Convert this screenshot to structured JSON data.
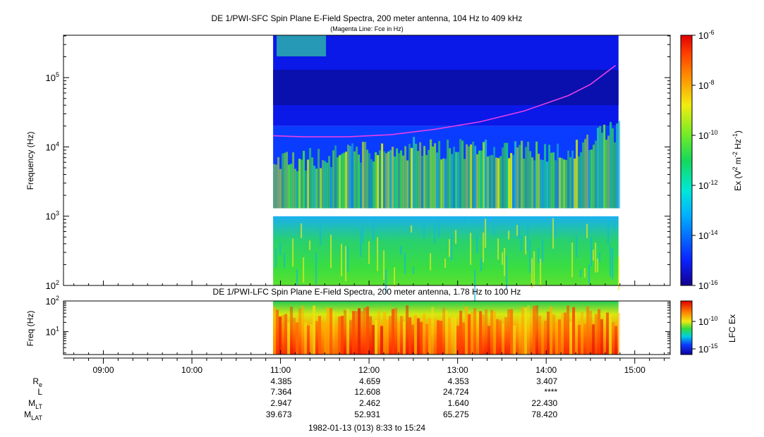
{
  "chart_data": [
    {
      "type": "heatmap",
      "title": "DE 1/PWI-SFC  Spin Plane E-Field Spectra, 200 meter antenna, 104 Hz to 409 kHz",
      "subtitle": "(Magenta Line: Fce in Hz)",
      "xlabel": "",
      "ylabel": "Frequency (Hz)",
      "yscale": "log",
      "ylim": [
        100,
        409000
      ],
      "yticks": [
        {
          "value": 100,
          "base": "10",
          "exp": "2"
        },
        {
          "value": 1000,
          "base": "10",
          "exp": "3"
        },
        {
          "value": 10000,
          "base": "10",
          "exp": "4"
        },
        {
          "value": 100000,
          "base": "10",
          "exp": "5"
        }
      ],
      "data_coverage": [
        "10:55",
        "14:49"
      ],
      "data_gap_hz": [
        1000,
        1300
      ],
      "colorbar": {
        "label": "Ex (V",
        "label_sup": "2",
        "label_mid": " m",
        "label_sup2": "-2",
        "label_mid2": " Hz",
        "label_sup3": "-1",
        "label_end": ")",
        "scale": "log",
        "range": [
          1e-16,
          1e-06
        ],
        "ticks": [
          {
            "value": 1e-06,
            "base": "10",
            "exp": "-6"
          },
          {
            "value": 1e-08,
            "base": "10",
            "exp": "-8"
          },
          {
            "value": 1e-10,
            "base": "10",
            "exp": "-10"
          },
          {
            "value": 1e-12,
            "base": "10",
            "exp": "-12"
          },
          {
            "value": 1e-14,
            "base": "10",
            "exp": "-14"
          },
          {
            "value": 1e-16,
            "base": "10",
            "exp": "-16"
          }
        ]
      },
      "fce_line": {
        "color": "#e83ee8",
        "points": [
          {
            "t": "10:55",
            "hz": 14500
          },
          {
            "t": "11:15",
            "hz": 14000
          },
          {
            "t": "11:45",
            "hz": 14000
          },
          {
            "t": "12:15",
            "hz": 15000
          },
          {
            "t": "12:45",
            "hz": 18000
          },
          {
            "t": "13:15",
            "hz": 23000
          },
          {
            "t": "13:45",
            "hz": 33000
          },
          {
            "t": "14:15",
            "hz": 55000
          },
          {
            "t": "14:30",
            "hz": 80000
          },
          {
            "t": "14:47",
            "hz": 150000
          }
        ]
      }
    },
    {
      "type": "heatmap",
      "title": "DE 1/PWI-LFC  Spin Plane E-Field Spectra, 200 meter antenna, 1.78 Hz to 100 Hz",
      "ylabel": "Freq (Hz)",
      "yscale": "log",
      "ylim": [
        1.78,
        100
      ],
      "yticks": [
        {
          "value": 10,
          "base": "10",
          "exp": "1"
        },
        {
          "value": 100,
          "base": "10",
          "exp": "2"
        }
      ],
      "data_coverage": [
        "10:55",
        "14:49"
      ],
      "colorbar": {
        "label": "LFC Ex",
        "scale": "log",
        "ticks": [
          {
            "value": 1e-10,
            "base": "10",
            "exp": "-10"
          },
          {
            "value": 1e-15,
            "base": "10",
            "exp": "-15"
          }
        ]
      }
    }
  ],
  "time_axis": {
    "range": [
      "08:33",
      "15:24"
    ],
    "ticks": [
      "09:00",
      "10:00",
      "11:00",
      "12:00",
      "13:00",
      "14:00",
      "15:00"
    ]
  },
  "ephemeris": {
    "rows": [
      {
        "label": "R",
        "sub": "e",
        "values": [
          "4.385",
          "4.659",
          "4.353",
          "3.407"
        ]
      },
      {
        "label": "L",
        "sub": "",
        "values": [
          "7.364",
          "12.608",
          "24.724",
          "****"
        ]
      },
      {
        "label": "M",
        "sub": "LT",
        "values": [
          "2.947",
          "2.462",
          "1.640",
          "22.430"
        ]
      },
      {
        "label": "M",
        "sub": "LAT",
        "values": [
          "39.673",
          "52.931",
          "65.275",
          "78.420"
        ]
      }
    ],
    "times": [
      "11:00",
      "12:00",
      "13:00",
      "14:00"
    ]
  },
  "footer": "1982-01-13 (013) 8:33 to 15:24"
}
